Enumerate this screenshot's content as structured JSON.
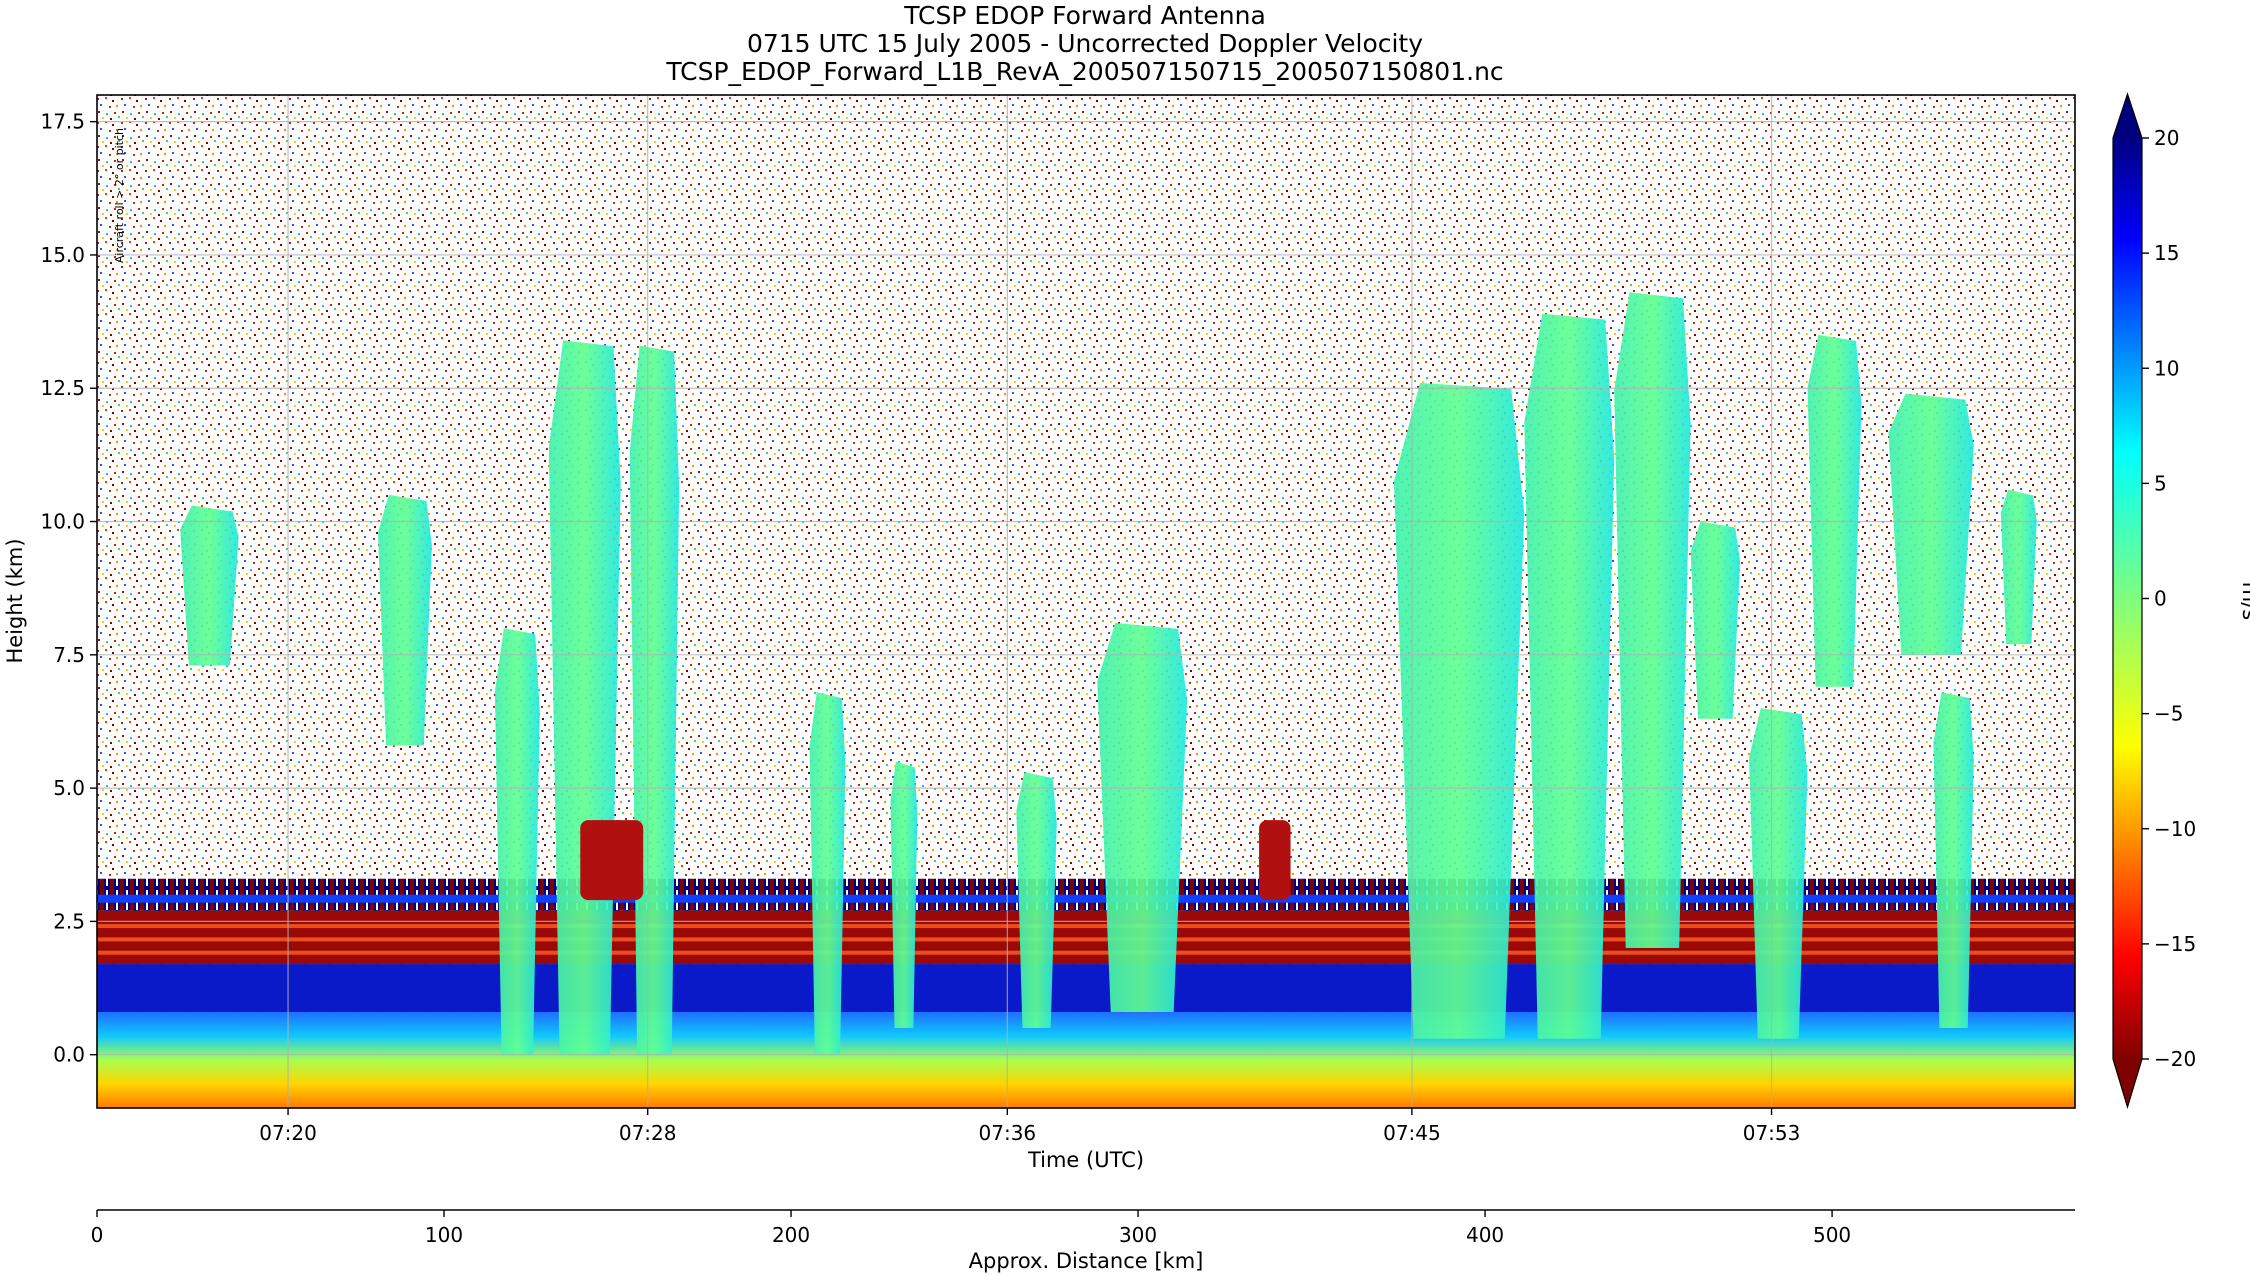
{
  "chart_data": {
    "type": "heatmap",
    "title_lines": [
      "TCSP EDOP Forward Antenna",
      "0715 UTC 15 July 2005 - Uncorrected Doppler Velocity",
      "TCSP_EDOP_Forward_L1B_RevA_200507150715_200507150801.nc"
    ],
    "xlabel": "Time (UTC)",
    "ylabel": "Height (km)",
    "x_ticks": [
      "07:20",
      "07:28",
      "07:36",
      "07:45",
      "07:53"
    ],
    "x_range_minutes": [
      15.75,
      59.75
    ],
    "x_tick_minutes": [
      20,
      28,
      36,
      45,
      53
    ],
    "ylim": [
      -1.0,
      18.0
    ],
    "y_ticks": [
      0.0,
      2.5,
      5.0,
      7.5,
      10.0,
      12.5,
      15.0,
      17.5
    ],
    "y_tick_labels": [
      "0.0",
      "2.5",
      "5.0",
      "7.5",
      "10.0",
      "12.5",
      "15.0",
      "17.5"
    ],
    "grid": true,
    "annotation": "Aircraft roll > 2° or pitch",
    "secondary_axis": {
      "label": "Approx. Distance [km]",
      "xlim": [
        0,
        570
      ],
      "ticks": [
        0,
        100,
        200,
        300,
        400,
        500
      ]
    },
    "colorbar": {
      "label": "m/s",
      "min": -20,
      "max": 20,
      "ticks": [
        20,
        15,
        10,
        5,
        0,
        -5,
        -10,
        -15,
        -20
      ],
      "extend": "both",
      "colormap": "jet_reversed",
      "colors_top_to_bottom": [
        "#00007f",
        "#0000ff",
        "#007fff",
        "#00ffff",
        "#7fff7f",
        "#ffff00",
        "#ff7f00",
        "#ff0000",
        "#7f0000"
      ]
    },
    "echo_columns": [
      {
        "start_min": 17.6,
        "end_min": 18.9,
        "base_km": 7.3,
        "top_km": 10.3
      },
      {
        "start_min": 22.0,
        "end_min": 23.2,
        "base_km": 5.8,
        "top_km": 10.5
      },
      {
        "start_min": 24.6,
        "end_min": 25.6,
        "base_km": 0.0,
        "top_km": 8.0
      },
      {
        "start_min": 25.8,
        "end_min": 27.4,
        "base_km": 0.0,
        "top_km": 13.4
      },
      {
        "start_min": 27.6,
        "end_min": 28.7,
        "base_km": 0.0,
        "top_km": 13.3
      },
      {
        "start_min": 31.6,
        "end_min": 32.4,
        "base_km": 0.0,
        "top_km": 6.8
      },
      {
        "start_min": 33.4,
        "end_min": 34.0,
        "base_km": 0.5,
        "top_km": 5.5
      },
      {
        "start_min": 36.2,
        "end_min": 37.1,
        "base_km": 0.5,
        "top_km": 5.3
      },
      {
        "start_min": 38.0,
        "end_min": 40.0,
        "base_km": 0.8,
        "top_km": 8.1
      },
      {
        "start_min": 44.6,
        "end_min": 47.5,
        "base_km": 0.3,
        "top_km": 12.6
      },
      {
        "start_min": 47.5,
        "end_min": 49.5,
        "base_km": 0.3,
        "top_km": 13.9
      },
      {
        "start_min": 49.5,
        "end_min": 51.2,
        "base_km": 2.0,
        "top_km": 14.3
      },
      {
        "start_min": 51.2,
        "end_min": 52.3,
        "base_km": 6.3,
        "top_km": 10.0
      },
      {
        "start_min": 52.5,
        "end_min": 53.8,
        "base_km": 0.3,
        "top_km": 6.5
      },
      {
        "start_min": 53.8,
        "end_min": 55.0,
        "base_km": 6.9,
        "top_km": 13.5
      },
      {
        "start_min": 55.6,
        "end_min": 57.5,
        "base_km": 7.5,
        "top_km": 12.4
      },
      {
        "start_min": 58.1,
        "end_min": 58.9,
        "base_km": 7.7,
        "top_km": 10.6
      },
      {
        "start_min": 56.6,
        "end_min": 57.5,
        "base_km": 0.5,
        "top_km": 6.8
      }
    ]
  }
}
